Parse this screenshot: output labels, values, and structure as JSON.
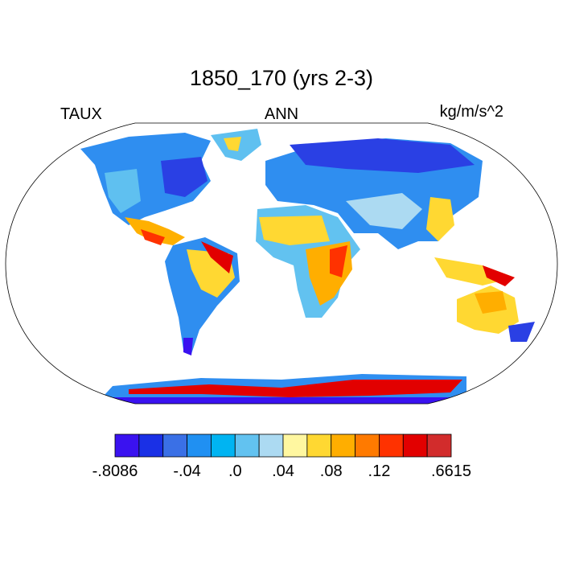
{
  "title": "1850_170 (yrs 2-3)",
  "left_string": "TAUX",
  "center_string": "ANN",
  "right_string": "kg/m/s^2",
  "colorbar": {
    "colors": [
      "#3a12f0",
      "#1a30e6",
      "#3a70e6",
      "#2090f2",
      "#00b4f2",
      "#62c2f0",
      "#acdaf2",
      "#fff7a0",
      "#ffd832",
      "#ffae00",
      "#ff7a00",
      "#ff3200",
      "#e20000",
      "#d22c2c"
    ],
    "labels": [
      "-.8086",
      null,
      null,
      "-.04",
      null,
      ".0",
      null,
      ".04",
      null,
      ".08",
      null,
      ".12",
      null,
      null,
      ".6615"
    ]
  }
}
